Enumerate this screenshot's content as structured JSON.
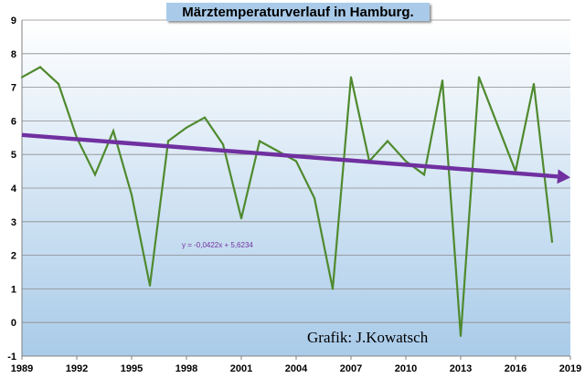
{
  "chart_data": {
    "type": "line",
    "title": "Märztemperaturverlauf in Hamburg.",
    "xlabel": "",
    "ylabel": "",
    "xlim": [
      1989,
      2019
    ],
    "ylim": [
      -1,
      9
    ],
    "x_ticks": [
      "1989",
      "1992",
      "1995",
      "1998",
      "2001",
      "2004",
      "2007",
      "2010",
      "2013",
      "2016",
      "2019"
    ],
    "y_ticks": [
      "-1",
      "0",
      "1",
      "2",
      "3",
      "4",
      "5",
      "6",
      "7",
      "8",
      "9"
    ],
    "grid": true,
    "series": [
      {
        "color": "#4f8a2e",
        "x": [
          1989,
          1990,
          1991,
          1992,
          1993,
          1994,
          1995,
          1996,
          1997,
          1998,
          1999,
          2000,
          2001,
          2002,
          2003,
          2004,
          2005,
          2006,
          2007,
          2008,
          2009,
          2010,
          2011,
          2012,
          2013,
          2014,
          2015,
          2016,
          2017,
          2018
        ],
        "values": [
          7.3,
          7.6,
          7.1,
          5.5,
          4.4,
          5.7,
          3.8,
          1.1,
          5.4,
          5.8,
          6.1,
          5.3,
          3.1,
          5.4,
          5.1,
          4.8,
          3.7,
          1.0,
          7.3,
          4.8,
          5.4,
          4.8,
          4.4,
          7.2,
          -0.4,
          7.3,
          5.9,
          4.5,
          7.1,
          2.4
        ]
      }
    ],
    "trendline": {
      "color": "#7030a0",
      "slope": -0.0422,
      "intercept": 5.6234,
      "x_start": 1989,
      "x_end": 2019,
      "equation": "y = -0,0422x + 5,6234"
    },
    "annotations": [
      "Grafik:  J.Kowatsch"
    ],
    "background_gradient": [
      "#ffffff",
      "#a9cbe9"
    ]
  }
}
